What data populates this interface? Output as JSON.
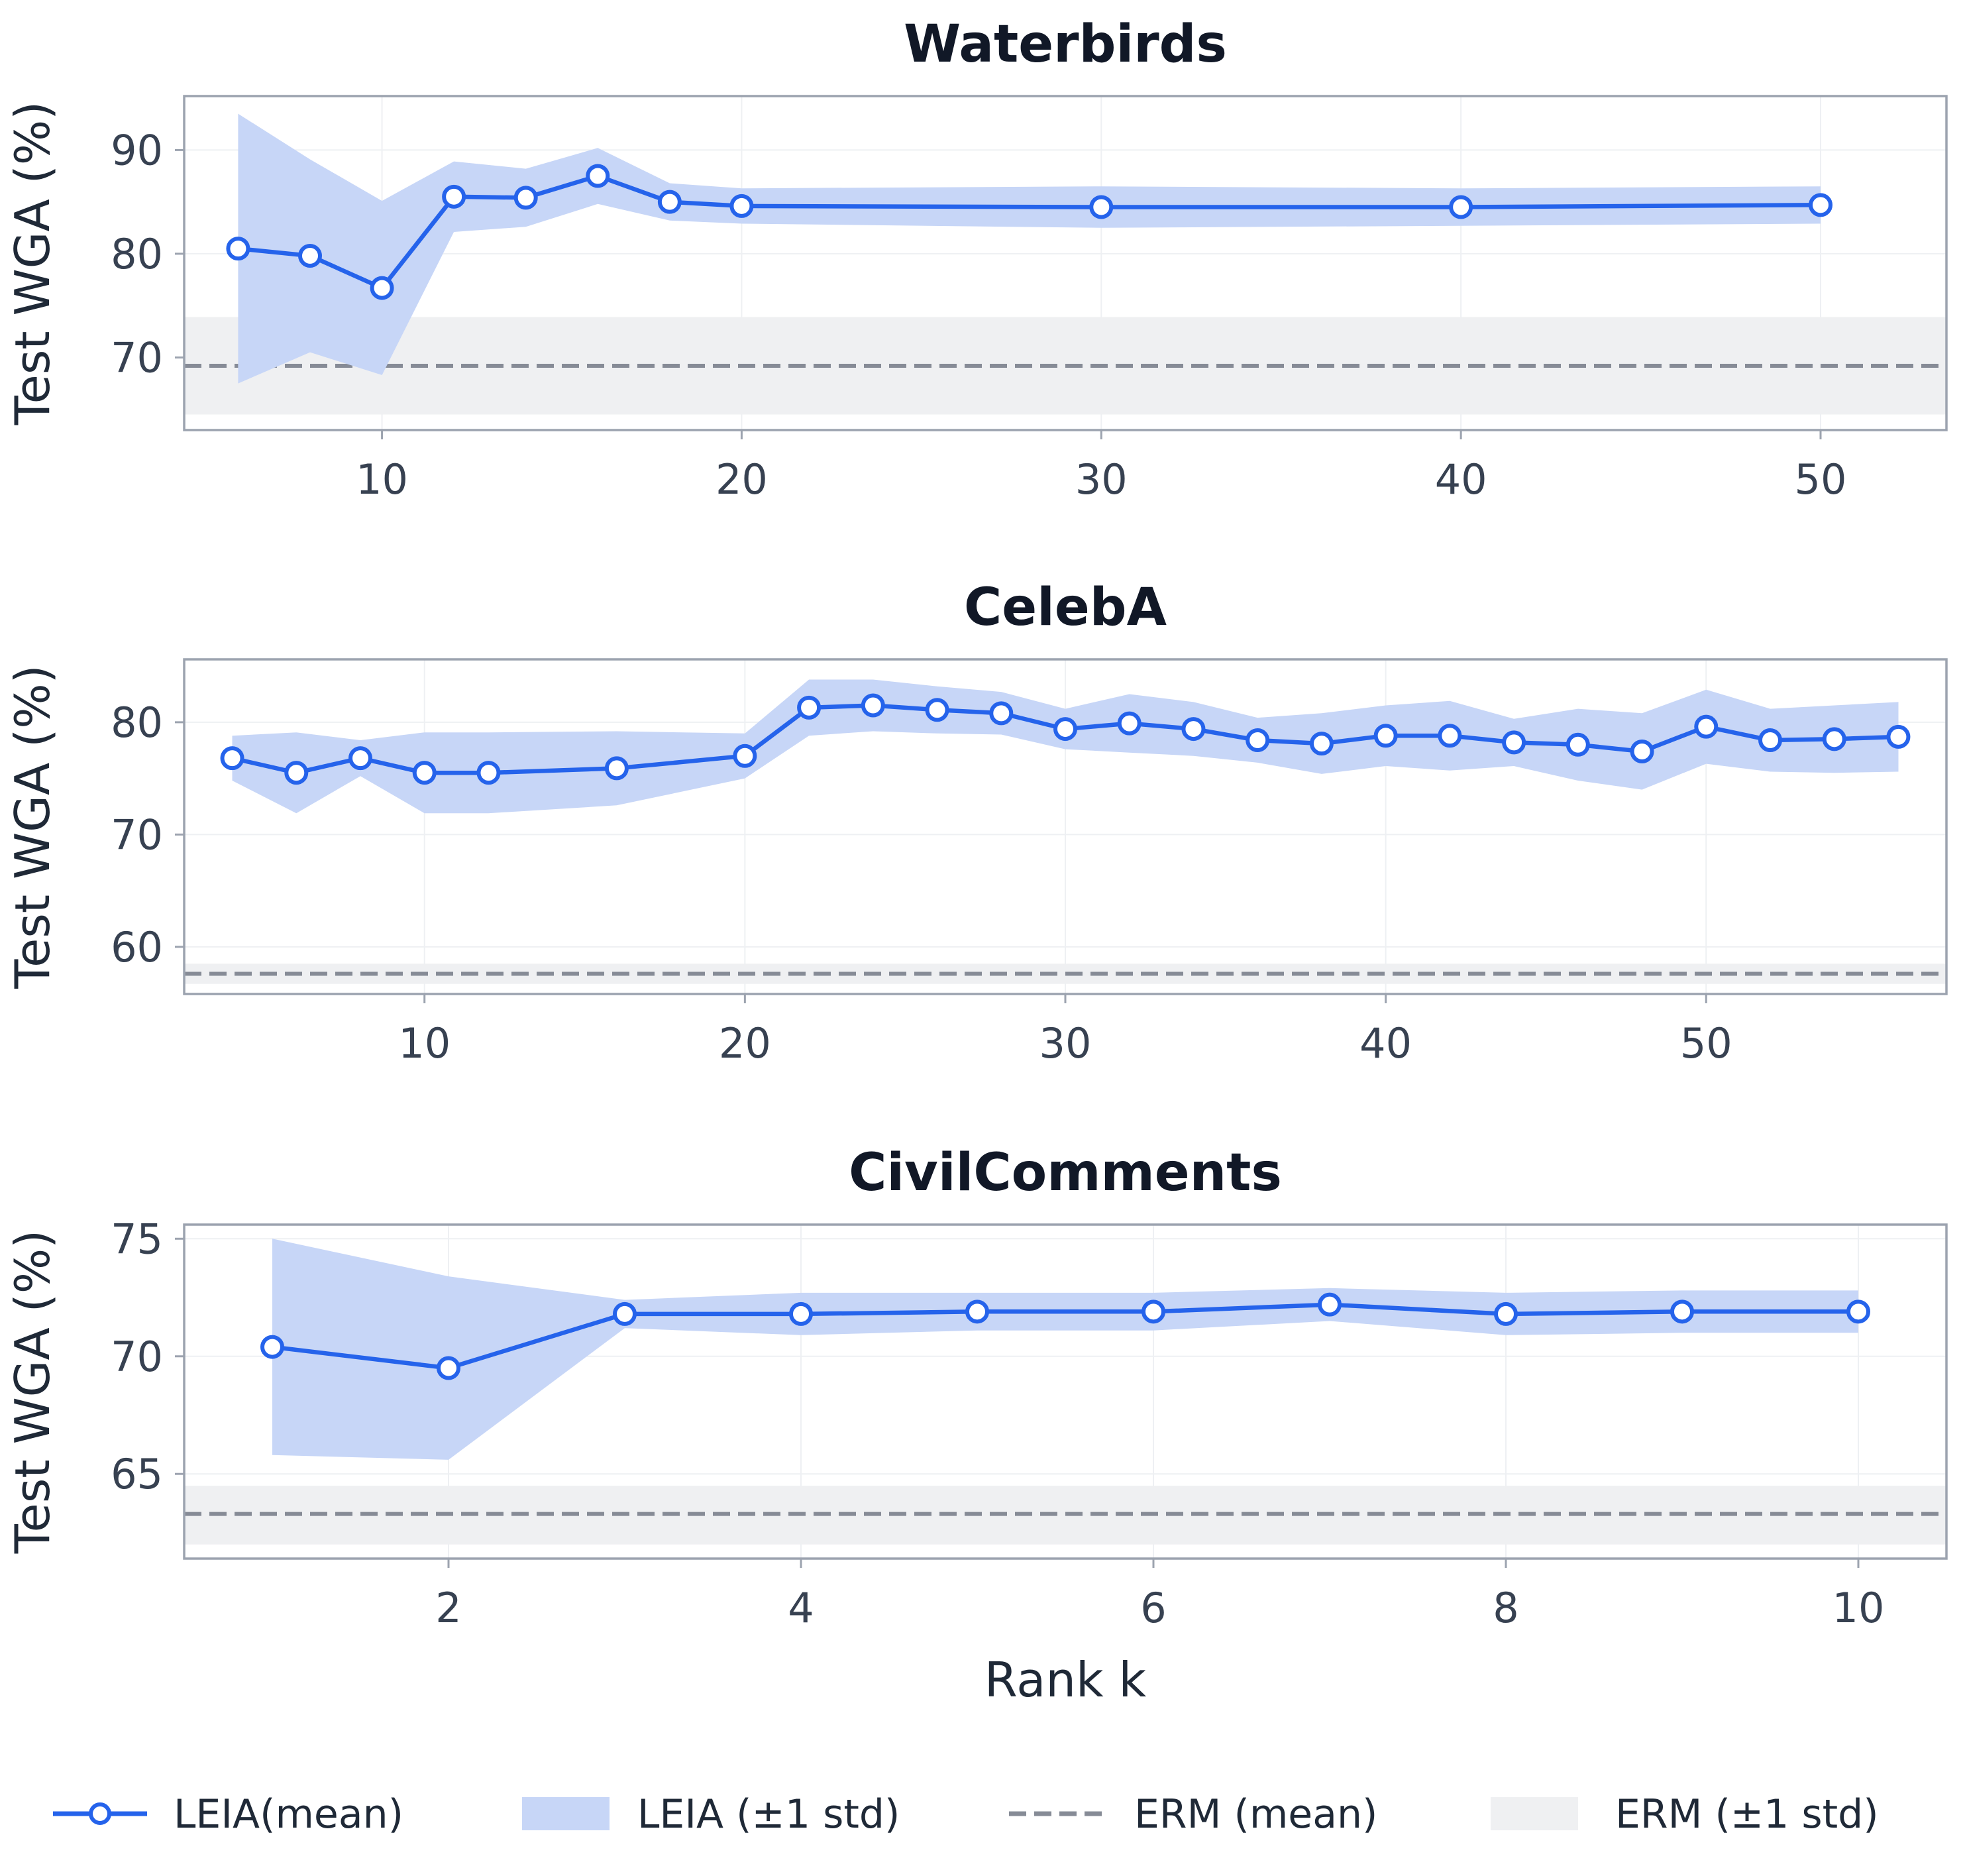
{
  "colors": {
    "leia": "#2563eb",
    "leia_band": "#c7d6f7",
    "erm": "#868b96",
    "erm_band": "#eff0f2",
    "frame": "#9ca3af",
    "grid": "#eef0f3"
  },
  "chart_data": [
    {
      "type": "line",
      "title": "Waterbirds",
      "xlabel": "",
      "ylabel": "Test WGA (%)",
      "xlim": [
        4.5,
        53.5
      ],
      "ylim": [
        63,
        95.2
      ],
      "xticks": [
        10,
        20,
        30,
        40,
        50
      ],
      "yticks": [
        70,
        80,
        90
      ],
      "series": [
        {
          "name": "LEIA (mean)",
          "x": [
            6,
            8,
            10,
            12,
            14,
            16,
            18,
            20,
            30,
            40,
            50
          ],
          "y": [
            80.5,
            79.8,
            76.7,
            85.5,
            85.4,
            87.5,
            85.0,
            84.6,
            84.5,
            84.5,
            84.7
          ],
          "lower": [
            67.5,
            70.5,
            68.3,
            82.1,
            82.6,
            84.8,
            83.2,
            82.9,
            82.5,
            82.7,
            82.9
          ],
          "upper": [
            93.5,
            89.1,
            85.1,
            88.9,
            88.2,
            90.2,
            86.8,
            86.3,
            86.5,
            86.3,
            86.5
          ]
        }
      ],
      "erm": {
        "mean": 69.2,
        "lower": 64.5,
        "upper": 73.9
      }
    },
    {
      "type": "line",
      "title": "CelebA",
      "xlabel": "",
      "ylabel": "Test WGA (%)",
      "xlim": [
        2.5,
        57.5
      ],
      "ylim": [
        55.8,
        85.6
      ],
      "xticks": [
        10,
        20,
        30,
        40,
        50
      ],
      "yticks": [
        60,
        70,
        80
      ],
      "series": [
        {
          "name": "LEIA (mean)",
          "x": [
            4,
            6,
            8,
            10,
            12,
            16,
            20,
            22,
            24,
            26,
            28,
            30,
            32,
            34,
            36,
            38,
            40,
            42,
            44,
            46,
            48,
            50,
            52,
            54,
            56
          ],
          "y": [
            76.8,
            75.5,
            76.8,
            75.5,
            75.5,
            75.9,
            77.0,
            81.3,
            81.5,
            81.1,
            80.8,
            79.4,
            79.9,
            79.4,
            78.4,
            78.1,
            78.8,
            78.8,
            78.2,
            78.0,
            77.4,
            79.6,
            78.4,
            78.5,
            78.7
          ],
          "lower": [
            74.8,
            71.9,
            75.2,
            71.9,
            71.9,
            72.6,
            75.0,
            78.8,
            79.2,
            79.0,
            78.9,
            77.6,
            77.3,
            77.0,
            76.4,
            75.4,
            76.1,
            75.7,
            76.1,
            74.8,
            74.0,
            76.3,
            75.6,
            75.5,
            75.6
          ],
          "upper": [
            78.8,
            79.1,
            78.4,
            79.1,
            79.1,
            79.2,
            79.0,
            83.8,
            83.8,
            83.2,
            82.7,
            81.2,
            82.5,
            81.8,
            80.4,
            80.8,
            81.5,
            81.9,
            80.3,
            81.2,
            80.8,
            82.9,
            81.2,
            81.5,
            81.8
          ]
        }
      ],
      "erm": {
        "mean": 57.6,
        "lower": 56.7,
        "upper": 58.5
      }
    },
    {
      "type": "line",
      "title": "CivilComments",
      "xlabel": "Rank k",
      "ylabel": "Test WGA (%)",
      "xlim": [
        0.5,
        10.5
      ],
      "ylim": [
        61.4,
        75.6
      ],
      "xticks": [
        2,
        4,
        6,
        8,
        10
      ],
      "yticks": [
        65,
        70,
        75
      ],
      "series": [
        {
          "name": "LEIA (mean)",
          "x": [
            1,
            2,
            3,
            4,
            5,
            6,
            7,
            8,
            9,
            10
          ],
          "y": [
            70.4,
            69.5,
            71.8,
            71.8,
            71.9,
            71.9,
            72.2,
            71.8,
            71.9,
            71.9
          ],
          "lower": [
            65.8,
            65.6,
            71.2,
            70.9,
            71.1,
            71.1,
            71.5,
            70.9,
            71.0,
            71.0
          ],
          "upper": [
            75.0,
            73.4,
            72.4,
            72.7,
            72.7,
            72.7,
            72.9,
            72.7,
            72.8,
            72.8
          ]
        }
      ],
      "erm": {
        "mean": 63.3,
        "lower": 62.0,
        "upper": 64.5
      }
    }
  ],
  "legend": {
    "leia_mean": "LEIA(mean)",
    "leia_std": "LEIA (±1 std)",
    "erm_mean": "ERM (mean)",
    "erm_std": "ERM (±1 std)"
  }
}
